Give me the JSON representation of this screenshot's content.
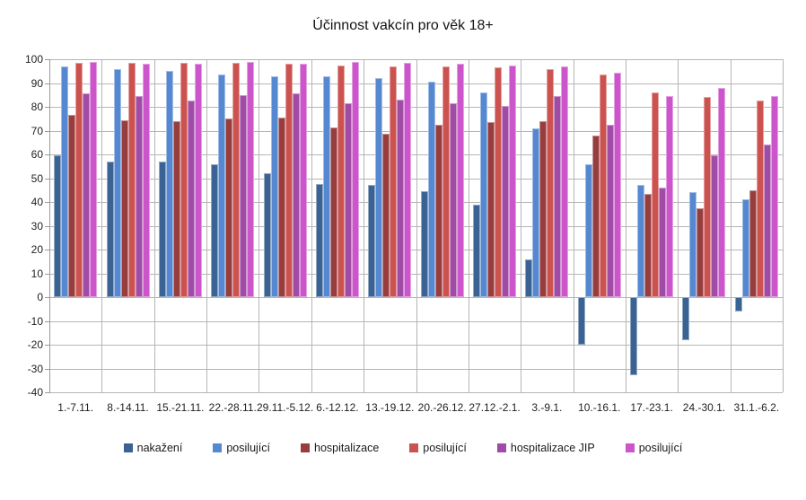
{
  "title": "Účinnost vakcín pro věk 18+",
  "colors": {
    "gridline": "#b5b5b5",
    "axis": "#9a9a9a",
    "text": "#1f1f1f",
    "background": "#ffffff"
  },
  "chart_data": {
    "type": "bar",
    "title": "Účinnost vakcín pro věk 18+",
    "xlabel": "",
    "ylabel": "",
    "ylim": [
      -40,
      100
    ],
    "ytick_step": 10,
    "grid": true,
    "legend_position": "bottom",
    "categories": [
      "1.-7.11.",
      "8.-14.11.",
      "15.-21.11.",
      "22.-28.11.",
      "29.11.-5.12.",
      "6.-12.12.",
      "13.-19.12.",
      "20.-26.12.",
      "27.12.-2.1.",
      "3.-9.1.",
      "10.-16.1.",
      "17.-23.1.",
      "24.-30.1.",
      "31.1.-6.2."
    ],
    "series": [
      {
        "name": "nakažení",
        "color": "#3A6394",
        "values": [
          59.5,
          57,
          57,
          56,
          52,
          47.5,
          47,
          44.5,
          39,
          16,
          -20,
          -33,
          -18,
          -6
        ]
      },
      {
        "name": "posilující",
        "color": "#5588D0",
        "values": [
          97,
          96,
          95,
          93.5,
          93,
          93,
          92,
          90.5,
          86,
          71,
          56,
          47,
          44,
          41
        ]
      },
      {
        "name": "hospitalizace",
        "color": "#983D3D",
        "values": [
          76.5,
          74.5,
          74,
          75,
          75.5,
          71.5,
          68.5,
          72.5,
          73.5,
          74,
          68,
          43.5,
          37.5,
          45
        ]
      },
      {
        "name": "posilující",
        "color": "#CC5250",
        "values": [
          98.5,
          98.5,
          98.5,
          98.5,
          98,
          97.5,
          97,
          97,
          96.5,
          96,
          93.5,
          86,
          84,
          82.5
        ]
      },
      {
        "name": "hospitalizace JIP",
        "color": "#A04BA5",
        "values": [
          85.5,
          84.5,
          82.5,
          85,
          85.5,
          81.5,
          83,
          81.5,
          80.5,
          84.5,
          72.5,
          46,
          59.5,
          64
        ]
      },
      {
        "name": "posilující",
        "color": "#CC55CC",
        "values": [
          99,
          98,
          98,
          99,
          98,
          99,
          98.5,
          98,
          97.5,
          97,
          94.5,
          84.5,
          88,
          84.5
        ]
      }
    ]
  }
}
